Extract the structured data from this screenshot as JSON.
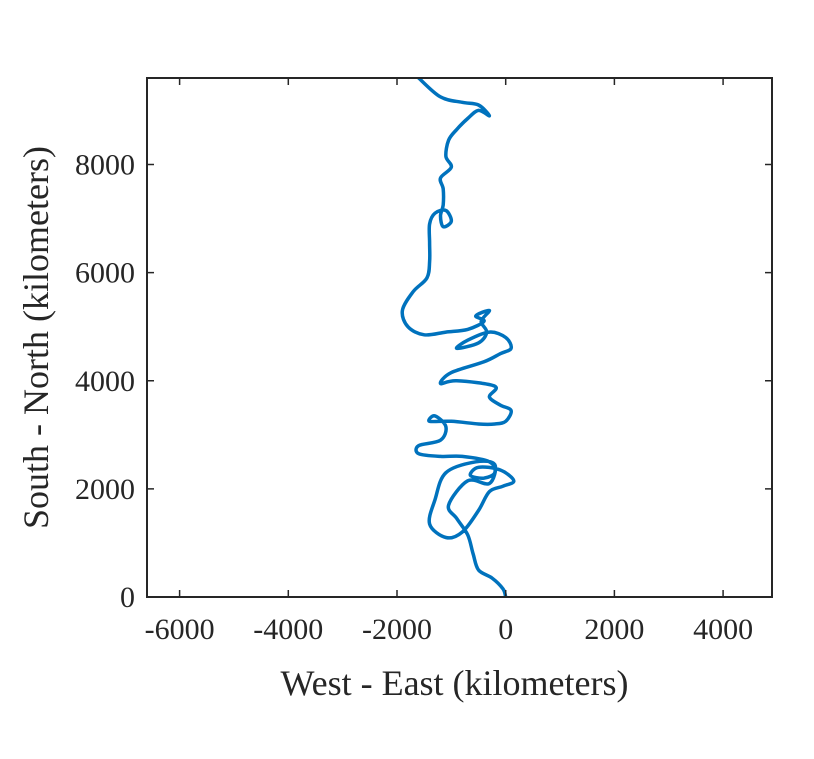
{
  "chart_data": {
    "type": "line",
    "title": "",
    "xlabel": "West - East (kilometers)",
    "ylabel": "South - North (kilometers)",
    "xlim": [
      -6600,
      4900
    ],
    "ylim": [
      0,
      9600
    ],
    "xticks": [
      -6000,
      -4000,
      -2000,
      0,
      2000,
      4000
    ],
    "xtick_labels": [
      "-6000",
      "-4000",
      "-2000",
      "0",
      "2000",
      "4000"
    ],
    "yticks": [
      0,
      2000,
      4000,
      6000,
      8000
    ],
    "ytick_labels": [
      "0",
      "2000",
      "4000",
      "6000",
      "8000"
    ],
    "grid": false,
    "box": true,
    "series_color": "#0072BD",
    "series": [
      {
        "points": [
          [
            0,
            0
          ],
          [
            -50,
            150
          ],
          [
            -250,
            350
          ],
          [
            -500,
            500
          ],
          [
            -600,
            800
          ],
          [
            -700,
            1150
          ],
          [
            -900,
            1450
          ],
          [
            -1050,
            1700
          ],
          [
            -700,
            2150
          ],
          [
            -300,
            2100
          ],
          [
            -200,
            2450
          ],
          [
            -550,
            2500
          ],
          [
            -1100,
            2300
          ],
          [
            -1300,
            1800
          ],
          [
            -1400,
            1350
          ],
          [
            -1100,
            1100
          ],
          [
            -800,
            1200
          ],
          [
            -500,
            1600
          ],
          [
            -300,
            1950
          ],
          [
            -50,
            2050
          ],
          [
            150,
            2150
          ],
          [
            -100,
            2350
          ],
          [
            -500,
            2400
          ],
          [
            -650,
            2250
          ],
          [
            -400,
            2200
          ],
          [
            -200,
            2300
          ],
          [
            -300,
            2500
          ],
          [
            -800,
            2600
          ],
          [
            -1200,
            2600
          ],
          [
            -1600,
            2650
          ],
          [
            -1600,
            2800
          ],
          [
            -1200,
            2900
          ],
          [
            -1100,
            3150
          ],
          [
            -1300,
            3350
          ],
          [
            -1400,
            3250
          ],
          [
            -1000,
            3250
          ],
          [
            -500,
            3200
          ],
          [
            -200,
            3200
          ],
          [
            0,
            3250
          ],
          [
            100,
            3450
          ],
          [
            -100,
            3550
          ],
          [
            -300,
            3700
          ],
          [
            -200,
            3900
          ],
          [
            -900,
            4000
          ],
          [
            -1200,
            3950
          ],
          [
            -1000,
            4150
          ],
          [
            -400,
            4350
          ],
          [
            -100,
            4500
          ],
          [
            100,
            4600
          ],
          [
            0,
            4800
          ],
          [
            -300,
            4900
          ],
          [
            -700,
            4750
          ],
          [
            -900,
            4600
          ],
          [
            -500,
            4700
          ],
          [
            -350,
            4900
          ],
          [
            -450,
            5100
          ],
          [
            -300,
            5300
          ],
          [
            -550,
            5200
          ],
          [
            -400,
            5100
          ],
          [
            -700,
            4950
          ],
          [
            -1100,
            4900
          ],
          [
            -1500,
            4850
          ],
          [
            -1800,
            5000
          ],
          [
            -1900,
            5300
          ],
          [
            -1700,
            5650
          ],
          [
            -1450,
            5900
          ],
          [
            -1400,
            6200
          ],
          [
            -1400,
            6550
          ],
          [
            -1400,
            6900
          ],
          [
            -1300,
            7100
          ],
          [
            -1100,
            7150
          ],
          [
            -1000,
            6950
          ],
          [
            -1150,
            6850
          ],
          [
            -1200,
            7050
          ],
          [
            -1150,
            7250
          ],
          [
            -1150,
            7550
          ],
          [
            -1200,
            7750
          ],
          [
            -1000,
            7950
          ],
          [
            -1100,
            8150
          ],
          [
            -1050,
            8450
          ],
          [
            -900,
            8650
          ],
          [
            -700,
            8850
          ],
          [
            -500,
            9000
          ],
          [
            -300,
            8900
          ],
          [
            -500,
            9100
          ],
          [
            -800,
            9150
          ],
          [
            -1200,
            9250
          ],
          [
            -1600,
            9600
          ]
        ]
      }
    ]
  }
}
